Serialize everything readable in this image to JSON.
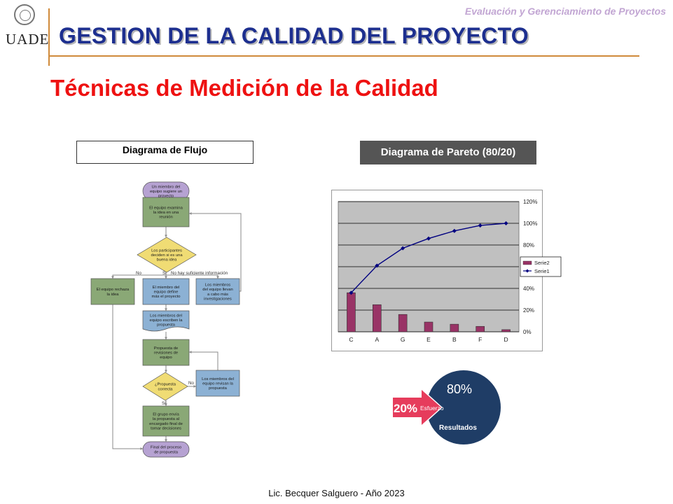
{
  "header": {
    "course": "Evaluación y Gerenciamiento de Proyectos",
    "logo_text": "UADE",
    "title": "GESTION DE LA CALIDAD DEL PROYECTO"
  },
  "slide": {
    "subtitle": "Técnicas de Medición de la Calidad"
  },
  "flowchart": {
    "label": "Diagrama de Flujo",
    "nodes": {
      "start": [
        "Un miembro del",
        "equipo sugiere un",
        "proyecto"
      ],
      "examine": [
        "El equipo examina",
        "la idea en una",
        "reunión"
      ],
      "decide": [
        "Los participantes",
        "deciden si es una",
        "buena idea"
      ],
      "reject": [
        "El equipo rechaza",
        "la idea"
      ],
      "define": [
        "El miembro del",
        "equipo define",
        "más el proyecto"
      ],
      "investigate": [
        "Los miembros",
        "del equipo llevan",
        "a cabo más",
        "investigaciones"
      ],
      "write": [
        "Los miembros del",
        "equipo escriben la",
        "propuesta"
      ],
      "revise": [
        "Propuesta de",
        "revisiones de",
        "equipo"
      ],
      "correct": [
        "¿Propuesta",
        "correcta"
      ],
      "review": [
        "Los miembros del",
        "equipo revisan la",
        "propuesta"
      ],
      "send": [
        "El grupo envía",
        "la propuesta al",
        "encargado final de",
        "tomar decisiones"
      ],
      "end": [
        "Final del proceso",
        "de propuesta"
      ]
    },
    "edge_labels": {
      "no": "No",
      "yes": "Sí",
      "insufficient": "No hay suficiente información",
      "no2": "No",
      "yes2": "Sí"
    }
  },
  "pareto": {
    "label": "Diagrama de Pareto (80/20)",
    "effort_badge": {
      "pct_small": "20%",
      "effort": "Esfuerzo",
      "pct_big": "80%",
      "results": "Resultados"
    },
    "colors": {
      "bar": "#993366",
      "line": "#000080",
      "grid": "#000000",
      "plot_bg": "#c0c0c0"
    }
  },
  "chart_data": {
    "type": "bar",
    "categories": [
      "C",
      "A",
      "G",
      "E",
      "B",
      "F",
      "D"
    ],
    "series": [
      {
        "name": "Serie2",
        "type": "bar",
        "values": [
          36,
          25,
          16,
          9,
          7,
          5,
          2
        ]
      },
      {
        "name": "Serie1",
        "type": "line",
        "values": [
          36,
          61,
          77,
          86,
          93,
          98,
          100
        ]
      }
    ],
    "y_ticks": [
      "0%",
      "20%",
      "40%",
      "60%",
      "80%",
      "100%",
      "120%"
    ],
    "ylim": [
      0,
      120
    ],
    "y_axis_position": "right",
    "legend_position": "right",
    "grid": true
  },
  "footer": {
    "text": "Lic. Becquer Salguero - Año 2023"
  }
}
